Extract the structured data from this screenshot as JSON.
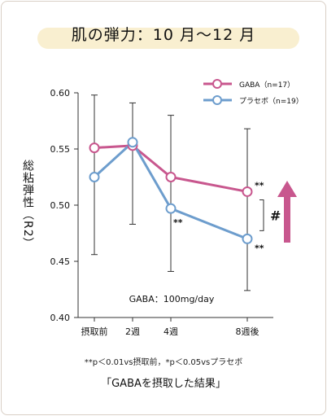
{
  "chart_data": {
    "type": "line",
    "title": "肌の弾力：10 月〜12 月",
    "ylabel": "総粘弾性（R2）",
    "xlabel": "",
    "categories": [
      "摂取前",
      "2週",
      "4週",
      "8週後"
    ],
    "x": [
      0,
      2,
      4,
      8
    ],
    "ylim": [
      0.4,
      0.6
    ],
    "yticks": [
      "0.40",
      "0.45",
      "0.50",
      "0.55",
      "0.60"
    ],
    "grid": false,
    "legend_position": "top-right",
    "series": [
      {
        "name": "GABA（n=17）",
        "color": "#c8578e",
        "values": [
          0.551,
          0.553,
          0.525,
          0.512
        ],
        "errors": [
          null,
          [
            0.483,
            0.591
          ],
          [
            0.441,
            0.58
          ],
          [
            0.424,
            0.568
          ]
        ]
      },
      {
        "name": "プラセボ（n=19）",
        "color": "#6d9dcd",
        "values": [
          0.525,
          0.556,
          0.497,
          0.47
        ],
        "errors": [
          [
            0.456,
            0.598
          ],
          null,
          null,
          null
        ]
      }
    ],
    "annotations": {
      "dose": "GABA：100mg/day",
      "gaba_8w": "**",
      "placebo_4w": "**",
      "placebo_8w": "**",
      "between_groups": "#"
    },
    "footnote": "**p＜0.01vs摂取前，*p＜0.05vsプラセボ",
    "caption": "「GABAを摂取した結果」",
    "arrow_color": "#c8578e"
  }
}
